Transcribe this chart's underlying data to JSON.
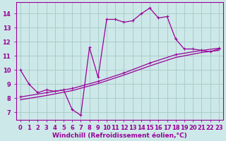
{
  "background_color": "#cde8e8",
  "grid_color": "#aacccc",
  "line_color": "#990099",
  "xlabel": "Windchill (Refroidissement éolien,°C)",
  "xlabel_fontsize": 6.5,
  "tick_fontsize": 6.0,
  "xlim": [
    -0.5,
    23.5
  ],
  "ylim": [
    6.5,
    14.8
  ],
  "yticks": [
    7,
    8,
    9,
    10,
    11,
    12,
    13,
    14
  ],
  "xticks": [
    0,
    1,
    2,
    3,
    4,
    5,
    6,
    7,
    8,
    9,
    10,
    11,
    12,
    13,
    14,
    15,
    16,
    17,
    18,
    19,
    20,
    21,
    22,
    23
  ],
  "curve1_x": [
    0,
    1,
    2,
    3,
    4,
    5,
    6,
    7,
    8,
    9,
    10,
    11,
    12,
    13,
    14,
    15,
    16,
    17,
    18,
    19,
    20,
    21,
    22,
    23
  ],
  "curve1_y": [
    10.0,
    9.0,
    8.4,
    8.6,
    8.5,
    8.6,
    7.2,
    6.8,
    11.6,
    9.5,
    13.6,
    13.6,
    13.4,
    13.5,
    14.0,
    14.4,
    13.7,
    13.8,
    12.2,
    11.5,
    11.5,
    11.4,
    11.3,
    11.5
  ],
  "curve2_x": [
    0,
    3,
    6,
    9,
    12,
    15,
    18,
    21,
    23
  ],
  "curve2_y": [
    8.1,
    8.4,
    8.7,
    9.2,
    9.8,
    10.5,
    11.1,
    11.4,
    11.55
  ],
  "curve3_x": [
    0,
    3,
    6,
    9,
    12,
    15,
    18,
    21,
    23
  ],
  "curve3_y": [
    7.9,
    8.2,
    8.55,
    9.05,
    9.65,
    10.3,
    10.9,
    11.25,
    11.4
  ]
}
